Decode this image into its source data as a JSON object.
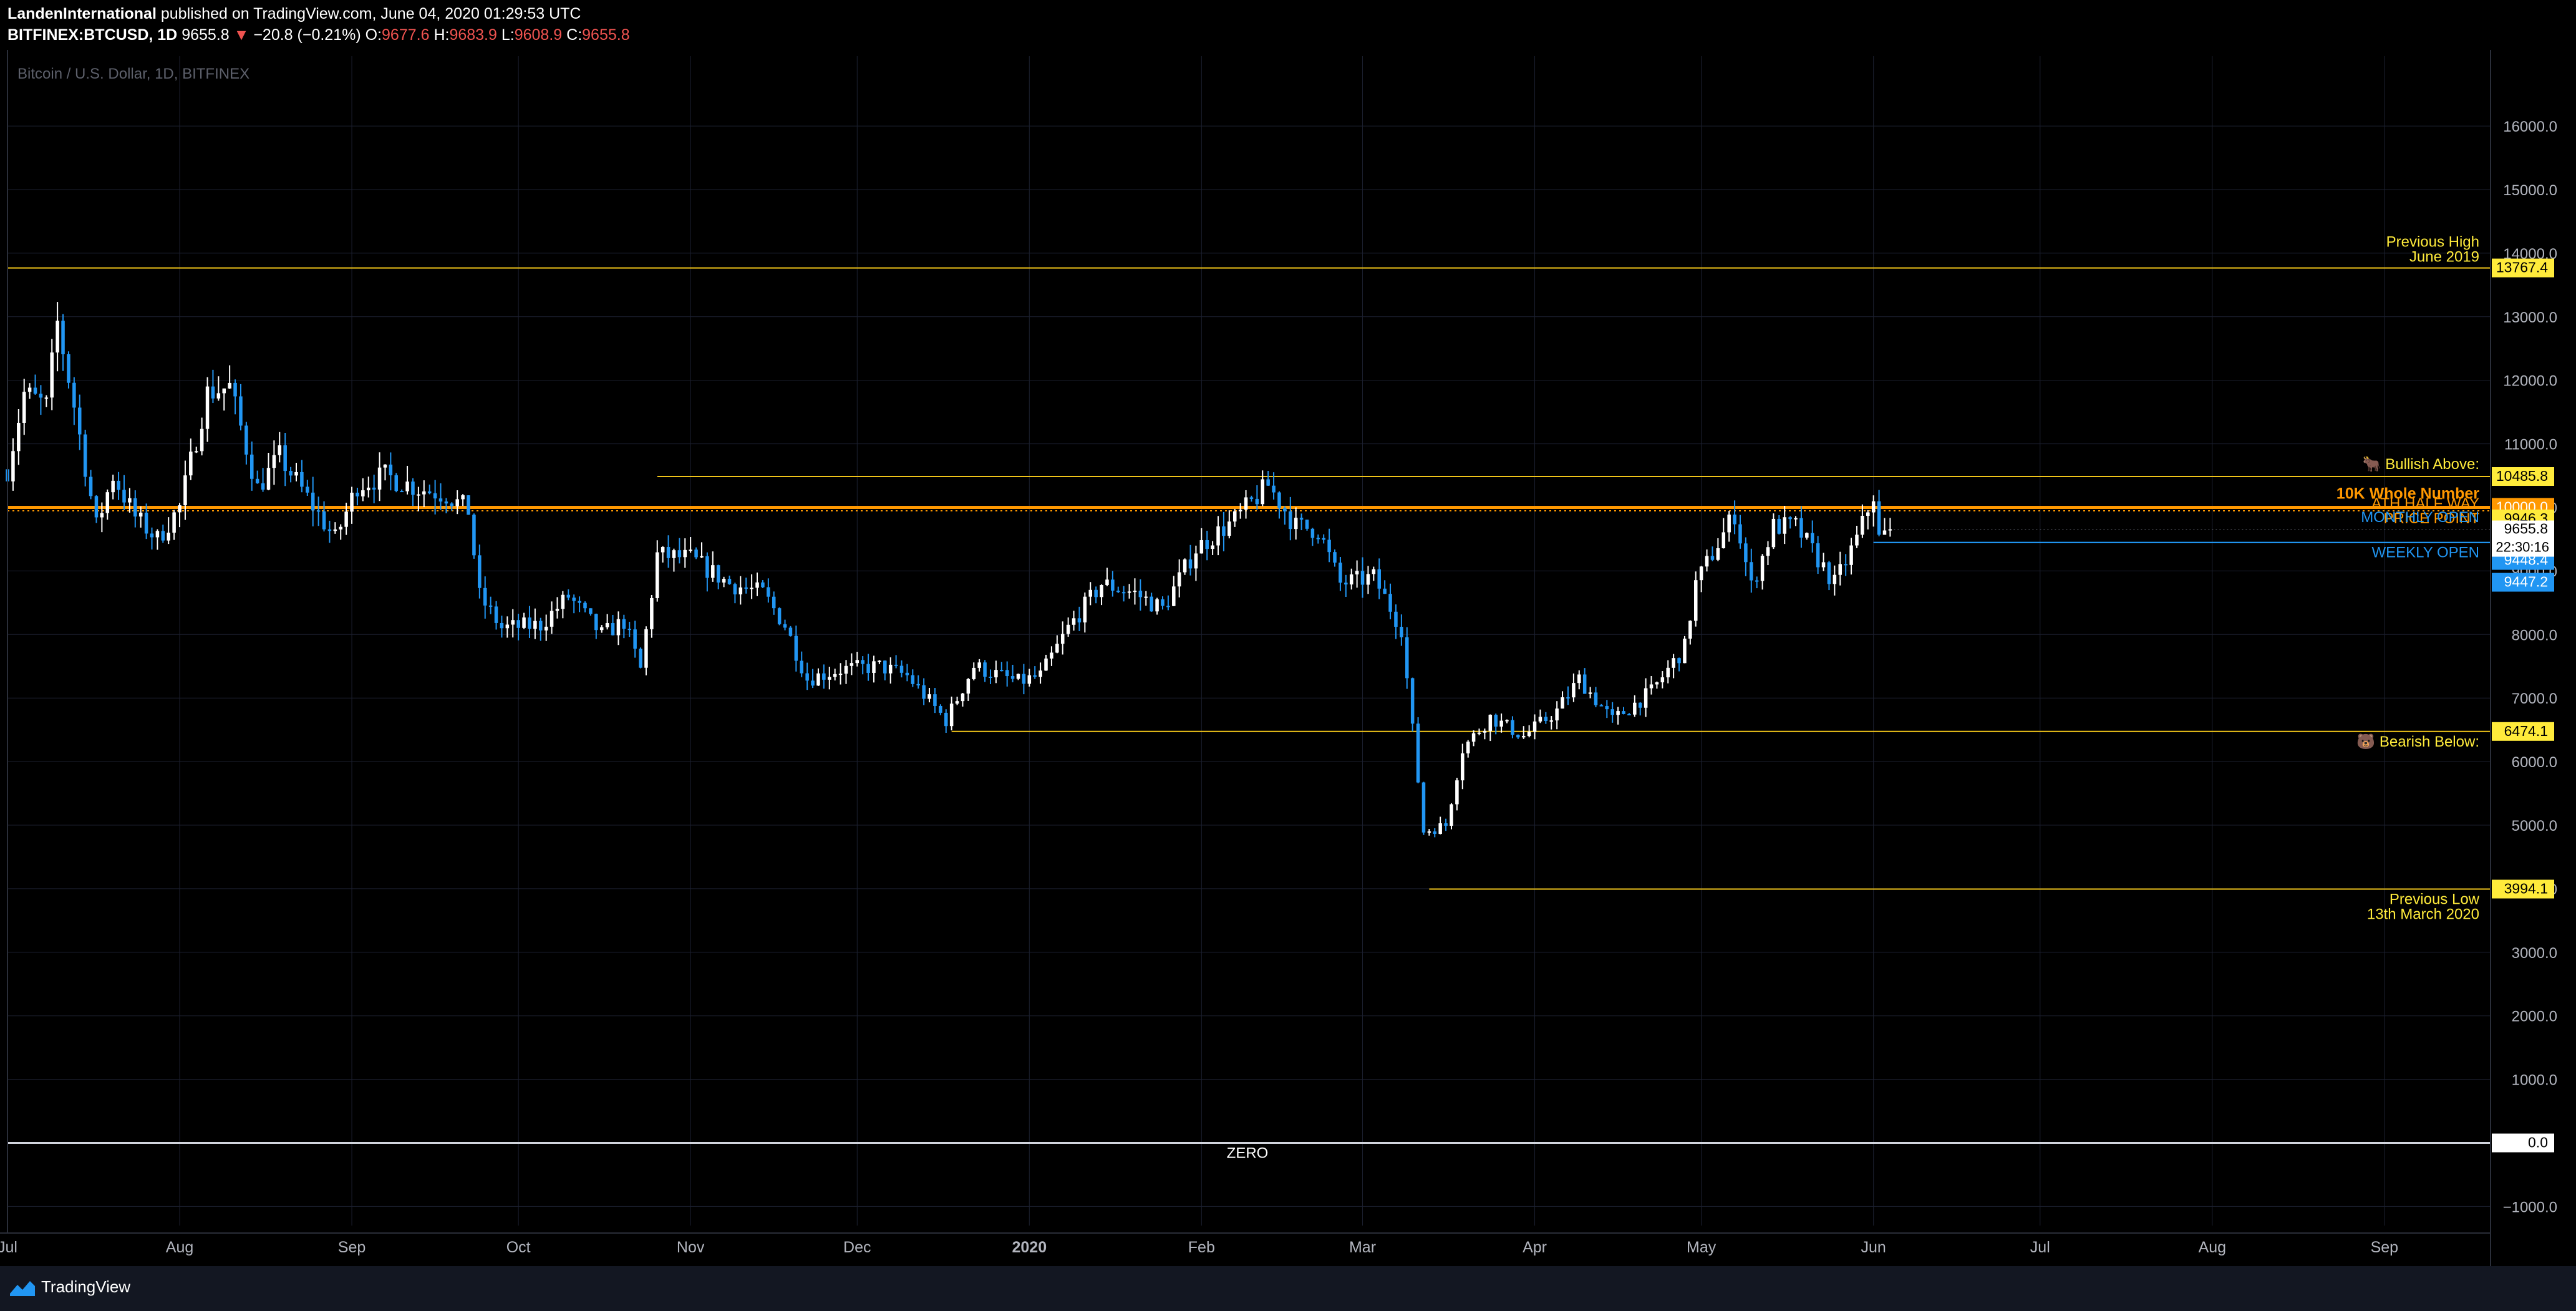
{
  "header": {
    "author": "LandenInternational",
    "published_text": "published on TradingView.com, June 04, 2020 01:29:53 UTC",
    "symbol": "BITFINEX:BTCUSD, 1D",
    "last": "9655.8",
    "change_arrow": "▼",
    "change": "−20.8 (−0.21%)",
    "o_label": "O:",
    "o_value": "9677.6",
    "h_label": "H:",
    "h_value": "9683.9",
    "l_label": "L:",
    "l_value": "9608.9",
    "c_label": "C:",
    "c_value": "9655.8"
  },
  "footer": {
    "brand": "TradingView",
    "logo_icon": "tradingview-logo-icon"
  },
  "colors": {
    "background": "#000000",
    "up": "#ffffff",
    "down": "#2196f3",
    "level_line": "#f0c419",
    "orange": "#ff9800",
    "blue": "#2196f3",
    "grid": "#1c2030",
    "yellow_label": "#ffeb3b"
  },
  "chart_data": {
    "type": "candlestick",
    "title": "Bitcoin / U.S. Dollar, 1D, BITFINEX",
    "x_axis": {
      "type": "time",
      "range": [
        "2019-07-01",
        "2020-09-20"
      ],
      "ticks": [
        {
          "date": "2019-07-01",
          "label": "Jul"
        },
        {
          "date": "2019-08-01",
          "label": "Aug"
        },
        {
          "date": "2019-09-01",
          "label": "Sep"
        },
        {
          "date": "2019-10-01",
          "label": "Oct"
        },
        {
          "date": "2019-11-01",
          "label": "Nov"
        },
        {
          "date": "2019-12-01",
          "label": "Dec"
        },
        {
          "date": "2020-01-01",
          "label": "2020"
        },
        {
          "date": "2020-02-01",
          "label": "Feb"
        },
        {
          "date": "2020-03-01",
          "label": "Mar"
        },
        {
          "date": "2020-04-01",
          "label": "Apr"
        },
        {
          "date": "2020-05-01",
          "label": "May"
        },
        {
          "date": "2020-06-01",
          "label": "Jun"
        },
        {
          "date": "2020-07-01",
          "label": "Jul"
        },
        {
          "date": "2020-08-01",
          "label": "Aug"
        },
        {
          "date": "2020-09-01",
          "label": "Sep"
        }
      ]
    },
    "y_axis": {
      "range": [
        -1300,
        17100
      ],
      "tick_values": [
        16000,
        15000,
        14000,
        13000,
        12000,
        11000,
        10000,
        9000,
        8000,
        7000,
        6000,
        5000,
        4000,
        3000,
        2000,
        1000,
        -1000
      ],
      "tick_labels": [
        "16000.0",
        "15000.0",
        "14000.0",
        "13000.0",
        "12000.0",
        "11000.0",
        "10000.0",
        "9000.0",
        "8000.0",
        "7000.0",
        "6000.0",
        "5000.0",
        "4000.0",
        "3000.0",
        "2000.0",
        "1000.0",
        "−1000.0"
      ],
      "grid": true
    },
    "price_path": [
      [
        "2019-07-01",
        10600
      ],
      [
        "2019-07-04",
        11800
      ],
      [
        "2019-07-08",
        11600
      ],
      [
        "2019-07-10",
        12900
      ],
      [
        "2019-07-13",
        11600
      ],
      [
        "2019-07-17",
        9700
      ],
      [
        "2019-07-20",
        10500
      ],
      [
        "2019-07-24",
        9850
      ],
      [
        "2019-07-28",
        9500
      ],
      [
        "2019-08-01",
        10000
      ],
      [
        "2019-08-06",
        11800
      ],
      [
        "2019-08-10",
        11900
      ],
      [
        "2019-08-15",
        10300
      ],
      [
        "2019-08-19",
        10800
      ],
      [
        "2019-08-24",
        10150
      ],
      [
        "2019-08-29",
        9500
      ],
      [
        "2019-09-02",
        10350
      ],
      [
        "2019-09-07",
        10500
      ],
      [
        "2019-09-13",
        10300
      ],
      [
        "2019-09-18",
        10200
      ],
      [
        "2019-09-22",
        9950
      ],
      [
        "2019-09-24",
        8600
      ],
      [
        "2019-09-28",
        8100
      ],
      [
        "2019-10-05",
        8150
      ],
      [
        "2019-10-10",
        8600
      ],
      [
        "2019-10-16",
        8000
      ],
      [
        "2019-10-20",
        8200
      ],
      [
        "2019-10-23",
        7450
      ],
      [
        "2019-10-25",
        8650
      ],
      [
        "2019-10-26",
        9250
      ],
      [
        "2019-11-01",
        9200
      ],
      [
        "2019-11-08",
        8800
      ],
      [
        "2019-11-14",
        8650
      ],
      [
        "2019-11-18",
        8150
      ],
      [
        "2019-11-22",
        7300
      ],
      [
        "2019-11-28",
        7450
      ],
      [
        "2019-12-05",
        7500
      ],
      [
        "2019-12-10",
        7350
      ],
      [
        "2019-12-17",
        6650
      ],
      [
        "2019-12-22",
        7500
      ],
      [
        "2019-12-30",
        7250
      ],
      [
        "2020-01-03",
        7350
      ],
      [
        "2020-01-08",
        8100
      ],
      [
        "2020-01-14",
        8800
      ],
      [
        "2020-01-20",
        8650
      ],
      [
        "2020-01-25",
        8400
      ],
      [
        "2020-01-31",
        9350
      ],
      [
        "2020-02-07",
        9800
      ],
      [
        "2020-02-13",
        10350
      ],
      [
        "2020-02-18",
        9700
      ],
      [
        "2020-02-22",
        9650
      ],
      [
        "2020-02-26",
        8800
      ],
      [
        "2020-03-03",
        8900
      ],
      [
        "2020-03-08",
        8100
      ],
      [
        "2020-03-12",
        4900
      ],
      [
        "2020-03-16",
        5000
      ],
      [
        "2020-03-19",
        6200
      ],
      [
        "2020-03-24",
        6700
      ],
      [
        "2020-03-30",
        6400
      ],
      [
        "2020-04-05",
        6800
      ],
      [
        "2020-04-09",
        7300
      ],
      [
        "2020-04-15",
        6650
      ],
      [
        "2020-04-22",
        7100
      ],
      [
        "2020-04-28",
        7800
      ],
      [
        "2020-04-30",
        8800
      ],
      [
        "2020-05-07",
        9900
      ],
      [
        "2020-05-10",
        8750
      ],
      [
        "2020-05-14",
        9700
      ],
      [
        "2020-05-18",
        9700
      ],
      [
        "2020-05-25",
        8800
      ],
      [
        "2020-05-29",
        9500
      ],
      [
        "2020-06-01",
        10200
      ],
      [
        "2020-06-02",
        9500
      ],
      [
        "2020-06-04",
        9655.8
      ]
    ],
    "levels": [
      {
        "label": "Previous High\nJune 2019",
        "value_label": "13767.4",
        "price": 13767.4,
        "from": "2019-07-01",
        "color": "#f0c419",
        "tag_bg": "#ffeb3b",
        "tag_fg": "#000000"
      },
      {
        "label": "🐂 Bullish Above:",
        "value_label": "10485.8",
        "price": 10485.8,
        "from": "2019-10-26",
        "color": "#f0c419",
        "tag_bg": "#ffeb3b",
        "tag_fg": "#000000"
      },
      {
        "label": "10K Whole Number",
        "value_label": "10000.0",
        "price": 10000.0,
        "from": "2019-07-01",
        "color": "#ff9800",
        "tag_bg": "#ff9800",
        "tag_fg": "#ffffff",
        "bold": true
      },
      {
        "label": "ATH HALF WAY\nPRICE POINT",
        "value_label": "9946.3",
        "price": 9946.3,
        "from": "2019-07-01",
        "color": "#ff9800",
        "tag_bg": "#ffeb3b",
        "tag_fg": "#000000",
        "dotted": true
      },
      {
        "label": "WEEKLY OPEN",
        "value_label": "9448.4",
        "price": 9448.4,
        "from": "2020-06-01",
        "color": "#2196f3",
        "tag_bg": "#2196f3",
        "tag_fg": "#ffffff"
      },
      {
        "label": "MONTHLY OPEN",
        "value_label": "9447.2",
        "price": 9447.2,
        "from": "2020-06-01",
        "color": "#2196f3",
        "tag_bg": "#2196f3",
        "tag_fg": "#ffffff"
      },
      {
        "label": "🐻 Bearish Below:",
        "value_label": "6474.1",
        "price": 6474.1,
        "from": "2019-12-18",
        "color": "#f0c419",
        "tag_bg": "#ffeb3b",
        "tag_fg": "#000000"
      },
      {
        "label": "Previous Low\n13th March 2020",
        "value_label": "3994.1",
        "price": 3994.1,
        "from": "2020-03-13",
        "color": "#f0c419",
        "tag_bg": "#ffeb3b",
        "tag_fg": "#000000"
      },
      {
        "label": "ZERO",
        "value_label": "0.0",
        "price": 0.0,
        "from": "2019-07-01",
        "color": "#ffffff",
        "tag_bg": "#ffffff",
        "tag_fg": "#000000"
      }
    ],
    "current_price": {
      "value_label": "9655.8",
      "price": 9655.8,
      "countdown": "22:30:16"
    },
    "legend": "none"
  }
}
